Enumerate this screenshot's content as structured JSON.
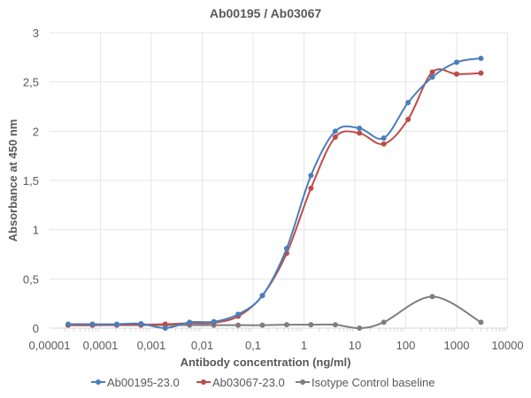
{
  "chart_data": {
    "type": "line",
    "title": "Ab00195 / Ab03067",
    "xlabel": "Antibody concentration (ng/ml)",
    "ylabel": "Absorbance at 450 nm",
    "x_scale": "log",
    "xlim": [
      1e-05,
      10000
    ],
    "ylim": [
      0,
      3
    ],
    "x_tick_labels": [
      "0,00001",
      "0,0001",
      "0,001",
      "0,01",
      "0,1",
      "1",
      "10",
      "100",
      "1000",
      "10000"
    ],
    "y_ticks": [
      0,
      0.5,
      1,
      1.5,
      2,
      2.5,
      3
    ],
    "y_tick_labels": [
      "0",
      "0,5",
      "1",
      "1,5",
      "2",
      "2,5",
      "3"
    ],
    "grid": true,
    "legend": "bottom",
    "x": [
      2.32e-05,
      6.97e-05,
      0.000209,
      0.000627,
      0.00188,
      0.00564,
      0.0169,
      0.0508,
      0.152,
      0.457,
      1.37,
      4.12,
      12.3,
      37,
      111,
      333,
      1000,
      3000
    ],
    "series": [
      {
        "name": "Ab00195-23.0",
        "color": "#4a7ebb",
        "values": [
          0.04,
          0.04,
          0.04,
          0.045,
          0.0,
          0.06,
          0.065,
          0.14,
          0.33,
          0.81,
          1.55,
          2.0,
          2.03,
          1.93,
          2.29,
          2.55,
          2.7,
          2.74
        ]
      },
      {
        "name": "Ab03067-23.0",
        "color": "#be4b48",
        "values": [
          0.03,
          0.03,
          0.035,
          0.035,
          0.04,
          0.05,
          0.055,
          0.12,
          0.33,
          0.76,
          1.42,
          1.94,
          1.98,
          1.87,
          2.12,
          2.6,
          2.58,
          2.59
        ]
      },
      {
        "name": "Isotype Control baseline",
        "color": "#7f7f7f",
        "values": [
          0.03,
          0.03,
          0.03,
          0.03,
          0.03,
          0.03,
          0.03,
          0.03,
          0.03,
          0.035,
          0.035,
          0.035,
          0.0,
          0.06,
          null,
          0.32,
          null,
          0.06
        ]
      }
    ]
  }
}
